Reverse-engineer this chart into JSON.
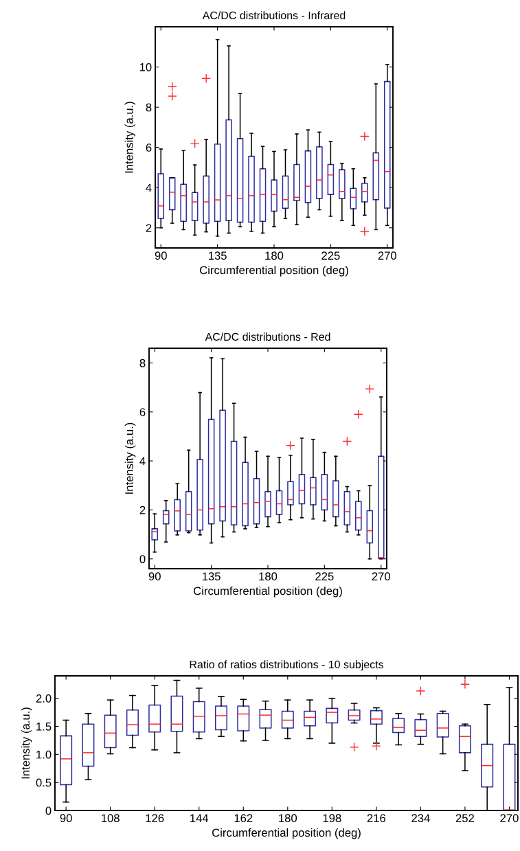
{
  "chart_data": [
    {
      "type": "box",
      "title": "AC/DC distributions - Infrared",
      "xlabel": "Circumferential position (deg)",
      "ylabel": "Intensity (a.u.)",
      "x": [
        90,
        99,
        108,
        117,
        126,
        135,
        144,
        153,
        162,
        171,
        180,
        189,
        198,
        207,
        216,
        225,
        234,
        243,
        252,
        261,
        270
      ],
      "xlim": [
        85.5,
        274.5
      ],
      "xticks": [
        90,
        135,
        180,
        225,
        270
      ],
      "ylim": [
        1,
        12
      ],
      "yticks": [
        2,
        4,
        6,
        8,
        10
      ],
      "grid": false,
      "series": [
        {
          "color": "#2e2e9e",
          "boxes": [
            {
              "low": 2.0,
              "q1": 2.47,
              "median": 3.09,
              "q3": 4.69,
              "high": 5.92
            },
            {
              "low": 2.23,
              "q1": 2.9,
              "median": 3.77,
              "q3": 4.49,
              "high": 4.49,
              "outliers": [
                9.03,
                8.55
              ]
            },
            {
              "low": 1.91,
              "q1": 2.32,
              "median": 3.6,
              "q3": 4.17,
              "high": 5.85
            },
            {
              "low": 1.64,
              "q1": 2.36,
              "median": 3.29,
              "q3": 3.76,
              "high": 5.13,
              "outliers": [
                6.19
              ]
            },
            {
              "low": 1.8,
              "q1": 2.23,
              "median": 3.29,
              "q3": 4.58,
              "high": 6.39,
              "outliers": [
                9.43
              ]
            },
            {
              "low": 1.59,
              "q1": 2.32,
              "median": 3.39,
              "q3": 6.17,
              "high": 11.36
            },
            {
              "low": 1.74,
              "q1": 2.36,
              "median": 3.6,
              "q3": 7.37,
              "high": 11.05
            },
            {
              "low": 2.06,
              "q1": 2.28,
              "median": 3.46,
              "q3": 6.44,
              "high": 8.68
            },
            {
              "low": 1.83,
              "q1": 2.28,
              "median": 3.6,
              "q3": 5.56,
              "high": 6.7
            },
            {
              "low": 1.74,
              "q1": 2.32,
              "median": 3.66,
              "q3": 4.94,
              "high": 6.05
            },
            {
              "low": 2.06,
              "q1": 2.83,
              "median": 3.66,
              "q3": 4.38,
              "high": 5.8
            },
            {
              "low": 2.47,
              "q1": 2.97,
              "median": 3.4,
              "q3": 4.58,
              "high": 5.88
            },
            {
              "low": 2.16,
              "q1": 3.35,
              "median": 3.52,
              "q3": 5.15,
              "high": 6.67
            },
            {
              "low": 2.53,
              "q1": 3.25,
              "median": 4.07,
              "q3": 5.83,
              "high": 6.87
            },
            {
              "low": 2.9,
              "q1": 3.45,
              "median": 4.38,
              "q3": 6.03,
              "high": 6.76
            },
            {
              "low": 2.58,
              "q1": 3.66,
              "median": 4.63,
              "q3": 5.15,
              "high": 6.3
            },
            {
              "low": 2.36,
              "q1": 3.45,
              "median": 3.81,
              "q3": 4.89,
              "high": 5.21
            },
            {
              "low": 2.12,
              "q1": 2.95,
              "median": 3.52,
              "q3": 3.96,
              "high": 4.94
            },
            {
              "low": 2.63,
              "q1": 3.29,
              "median": 3.81,
              "q3": 4.22,
              "high": 4.49,
              "outliers": [
                6.55,
                1.83
              ]
            },
            {
              "low": 1.91,
              "q1": 3.4,
              "median": 5.36,
              "q3": 5.73,
              "high": 9.16
            },
            {
              "low": 2.12,
              "q1": 2.98,
              "median": 4.8,
              "q3": 9.28,
              "high": 10.13
            }
          ]
        }
      ]
    },
    {
      "type": "box",
      "title": "AC/DC distributions - Red",
      "xlabel": "Circumferential position (deg)",
      "ylabel": "Intensity (a.u.)",
      "x": [
        90,
        99,
        108,
        117,
        126,
        135,
        144,
        153,
        162,
        171,
        180,
        189,
        198,
        207,
        216,
        225,
        234,
        243,
        252,
        261,
        270
      ],
      "xlim": [
        85.5,
        274.5
      ],
      "xticks": [
        90,
        135,
        180,
        225,
        270
      ],
      "ylim": [
        -0.4,
        8.6
      ],
      "yticks": [
        0,
        2,
        4,
        6,
        8
      ],
      "grid": false,
      "series": [
        {
          "color": "#2e2e9e",
          "boxes": [
            {
              "low": 0.28,
              "q1": 0.78,
              "median": 1.11,
              "q3": 1.23,
              "high": 1.84
            },
            {
              "low": 0.69,
              "q1": 1.43,
              "median": 1.81,
              "q3": 1.97,
              "high": 2.38
            },
            {
              "low": 0.98,
              "q1": 1.14,
              "median": 1.96,
              "q3": 2.42,
              "high": 3.07
            },
            {
              "low": 1.07,
              "q1": 1.14,
              "median": 1.81,
              "q3": 2.75,
              "high": 4.44
            },
            {
              "low": 0.98,
              "q1": 1.18,
              "median": 2.0,
              "q3": 4.06,
              "high": 6.79
            },
            {
              "low": 0.65,
              "q1": 1.43,
              "median": 2.05,
              "q3": 5.7,
              "high": 8.21
            },
            {
              "low": 0.9,
              "q1": 1.55,
              "median": 2.13,
              "q3": 6.07,
              "high": 8.17
            },
            {
              "low": 1.1,
              "q1": 1.39,
              "median": 2.13,
              "q3": 4.8,
              "high": 6.35
            },
            {
              "low": 1.23,
              "q1": 1.35,
              "median": 2.25,
              "q3": 3.94,
              "high": 4.97
            },
            {
              "low": 1.28,
              "q1": 1.43,
              "median": 2.3,
              "q3": 3.28,
              "high": 4.39
            },
            {
              "low": 1.32,
              "q1": 1.72,
              "median": 2.35,
              "q3": 2.75,
              "high": 4.19
            },
            {
              "low": 1.48,
              "q1": 1.81,
              "median": 2.25,
              "q3": 2.78,
              "high": 4.14
            },
            {
              "low": 1.6,
              "q1": 2.21,
              "median": 2.42,
              "q3": 3.16,
              "high": 4.23,
              "outliers": [
                4.63
              ]
            },
            {
              "low": 1.68,
              "q1": 2.25,
              "median": 2.79,
              "q3": 3.45,
              "high": 4.93
            },
            {
              "low": 1.63,
              "q1": 2.21,
              "median": 2.9,
              "q3": 3.32,
              "high": 4.88
            },
            {
              "low": 1.55,
              "q1": 2.0,
              "median": 2.42,
              "q3": 3.45,
              "high": 4.35
            },
            {
              "low": 1.35,
              "q1": 1.72,
              "median": 2.21,
              "q3": 3.19,
              "high": 4.19
            },
            {
              "low": 1.1,
              "q1": 1.39,
              "median": 1.93,
              "q3": 2.75,
              "high": 2.95,
              "outliers": [
                4.8
              ]
            },
            {
              "low": 0.98,
              "q1": 1.18,
              "median": 1.68,
              "q3": 2.35,
              "high": 2.78,
              "outliers": [
                5.9
              ]
            },
            {
              "low": 0.0,
              "q1": 0.65,
              "median": 1.15,
              "q3": 1.97,
              "high": 3.0,
              "outliers": [
                6.94
              ]
            },
            {
              "low": 0.0,
              "q1": 0.02,
              "median": 0.05,
              "q3": 4.19,
              "high": 6.61
            }
          ]
        }
      ]
    },
    {
      "type": "box",
      "title": "Ratio of ratios distributions - 10 subjects",
      "xlabel": "Circumferential position (deg)",
      "ylabel": "Intensity (a.u.)",
      "x": [
        90,
        99,
        108,
        117,
        126,
        135,
        144,
        153,
        162,
        171,
        180,
        189,
        198,
        207,
        216,
        225,
        234,
        243,
        252,
        261,
        270
      ],
      "xlim": [
        85.5,
        273.5
      ],
      "xticks": [
        90,
        108,
        126,
        144,
        162,
        180,
        198,
        216,
        234,
        252,
        270
      ],
      "ylim": [
        0,
        2.4
      ],
      "yticks": [
        0,
        0.5,
        {
          "value": 1,
          "label": "1.0"
        },
        1.5,
        {
          "value": 2,
          "label": "2.0"
        }
      ],
      "grid": false,
      "series": [
        {
          "color": "#2e2e9e",
          "boxes": [
            {
              "low": 0.15,
              "q1": 0.46,
              "median": 0.92,
              "q3": 1.33,
              "high": 1.61
            },
            {
              "low": 0.55,
              "q1": 0.79,
              "median": 1.03,
              "q3": 1.54,
              "high": 1.73
            },
            {
              "low": 1.01,
              "q1": 1.12,
              "median": 1.38,
              "q3": 1.7,
              "high": 1.97
            },
            {
              "low": 1.12,
              "q1": 1.34,
              "median": 1.53,
              "q3": 1.79,
              "high": 2.05
            },
            {
              "low": 1.08,
              "q1": 1.4,
              "median": 1.54,
              "q3": 1.88,
              "high": 2.23
            },
            {
              "low": 1.03,
              "q1": 1.41,
              "median": 1.54,
              "q3": 2.04,
              "high": 2.32
            },
            {
              "low": 1.28,
              "q1": 1.4,
              "median": 1.68,
              "q3": 1.94,
              "high": 2.18
            },
            {
              "low": 1.32,
              "q1": 1.44,
              "median": 1.69,
              "q3": 1.86,
              "high": 2.03
            },
            {
              "low": 1.24,
              "q1": 1.42,
              "median": 1.72,
              "q3": 1.86,
              "high": 1.98
            },
            {
              "low": 1.25,
              "q1": 1.47,
              "median": 1.7,
              "q3": 1.8,
              "high": 1.95
            },
            {
              "low": 1.28,
              "q1": 1.47,
              "median": 1.61,
              "q3": 1.77,
              "high": 1.97
            },
            {
              "low": 1.28,
              "q1": 1.51,
              "median": 1.66,
              "q3": 1.77,
              "high": 1.97
            },
            {
              "low": 1.2,
              "q1": 1.56,
              "median": 1.75,
              "q3": 1.82,
              "high": 2.0
            },
            {
              "low": 1.56,
              "q1": 1.61,
              "median": 1.69,
              "q3": 1.79,
              "high": 1.91,
              "outliers": [
                1.13
              ]
            },
            {
              "low": 1.2,
              "q1": 1.54,
              "median": 1.63,
              "q3": 1.78,
              "high": 1.83,
              "outliers": [
                1.15
              ]
            },
            {
              "low": 1.17,
              "q1": 1.39,
              "median": 1.48,
              "q3": 1.64,
              "high": 1.73
            },
            {
              "low": 1.18,
              "q1": 1.32,
              "median": 1.43,
              "q3": 1.62,
              "high": 1.72,
              "outliers": [
                2.13
              ]
            },
            {
              "low": 1.01,
              "q1": 1.31,
              "median": 1.47,
              "q3": 1.73,
              "high": 1.77
            },
            {
              "low": 0.71,
              "q1": 1.03,
              "median": 1.32,
              "q3": 1.51,
              "high": 1.54,
              "outliers": [
                2.25
              ]
            },
            {
              "low": 0.0,
              "q1": 0.42,
              "median": 0.8,
              "q3": 1.18,
              "high": 1.89
            },
            {
              "low": 0.0,
              "q1": 0.0,
              "median": 0.01,
              "q3": 1.18,
              "high": 2.19
            }
          ]
        }
      ]
    }
  ]
}
